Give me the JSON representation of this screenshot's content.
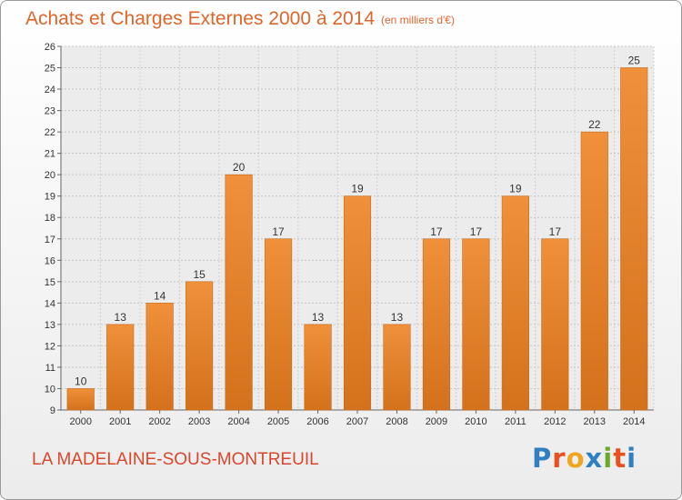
{
  "title": "Achats et Charges Externes 2000 à 2014",
  "unit": "(en milliers d'€)",
  "place": "LA MADELAINE-SOUS-MONTREUIL",
  "logo": {
    "text": "Proxiti",
    "letter_colors": [
      "#2f7fc1",
      "#e8501f",
      "#f0a51e",
      "#2f7fc1",
      "#6aaa2a",
      "#e8501f",
      "#2f7fc1"
    ]
  },
  "chart_data": {
    "type": "bar",
    "categories": [
      "2000",
      "2001",
      "2002",
      "2003",
      "2004",
      "2005",
      "2006",
      "2007",
      "2008",
      "2009",
      "2010",
      "2011",
      "2012",
      "2013",
      "2014"
    ],
    "values": [
      10,
      13,
      14,
      15,
      20,
      17,
      13,
      19,
      13,
      17,
      17,
      19,
      17,
      22,
      25
    ],
    "data_labels": [
      "10",
      "13",
      "14",
      "15",
      "20",
      "17",
      "13",
      "19",
      "13",
      "17",
      "17",
      "19",
      "17",
      "22",
      "25"
    ],
    "ylim": [
      9,
      26
    ],
    "yticks": [
      9,
      10,
      11,
      12,
      13,
      14,
      15,
      16,
      17,
      18,
      19,
      20,
      21,
      22,
      23,
      24,
      25,
      26
    ],
    "ytick_labels": [
      "9",
      "10",
      "11",
      "12",
      "13",
      "14",
      "15",
      "16",
      "17",
      "18",
      "19",
      "20",
      "21",
      "22",
      "23",
      "24",
      "25",
      "26"
    ],
    "grid": true,
    "bar_color": "#f0903a",
    "bar_color_dark": "#d4711c",
    "title": "Achats et Charges Externes 2000 à 2014",
    "xlabel": "",
    "ylabel": ""
  }
}
